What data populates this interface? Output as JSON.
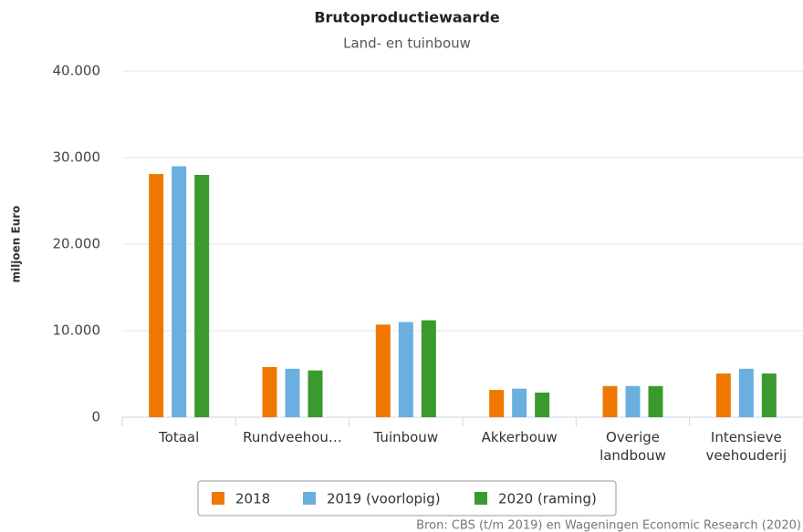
{
  "chart_data": {
    "type": "bar",
    "title": "Brutoproductiewaarde",
    "subtitle": "Land- en tuinbouw",
    "y_label": "miljoen Euro",
    "source": "Bron: CBS (t/m 2019) en Wageningen Economic Research (2020)",
    "categories": [
      "Totaal",
      "Rundveehou…",
      "Tuinbouw",
      "Akkerbouw",
      "Overige landbouw",
      "Intensieve veehouderij"
    ],
    "series": [
      {
        "name": "2018",
        "color": "#f07800",
        "values": [
          28100,
          5800,
          10700,
          3150,
          3600,
          5050
        ]
      },
      {
        "name": "2019 (voorlopig)",
        "color": "#6aafe0",
        "values": [
          29000,
          5600,
          11000,
          3300,
          3600,
          5600
        ]
      },
      {
        "name": "2020 (raming)",
        "color": "#3a9a2e",
        "values": [
          28000,
          5400,
          11200,
          2850,
          3600,
          5050
        ]
      }
    ],
    "ylim": [
      0,
      40000
    ],
    "yticks": [
      0,
      {
        "value": 10000,
        "label": "10.000"
      },
      {
        "value": 20000,
        "label": "20.000"
      },
      {
        "value": 30000,
        "label": "30.000"
      },
      {
        "value": 40000,
        "label": "40.000"
      }
    ],
    "grid": true,
    "legend": "bottom"
  }
}
